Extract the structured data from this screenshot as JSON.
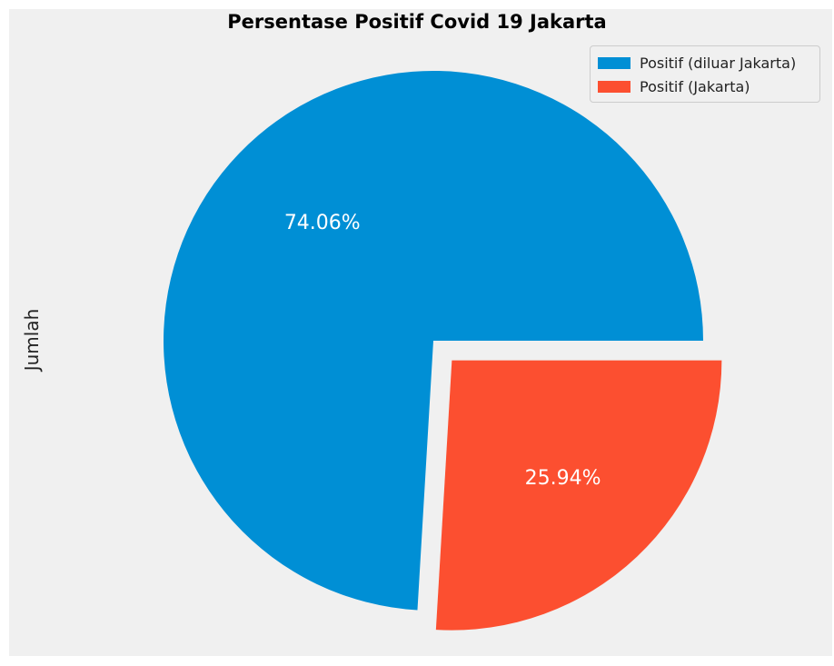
{
  "chart_data": {
    "type": "pie",
    "title": "Persentase Positif Covid 19 Jakarta",
    "ylabel": "Jumlah",
    "legend_position": "top-right",
    "slices": [
      {
        "name": "Positif (diluar Jakarta)",
        "value": 74.06,
        "label": "74.06%",
        "color": "#008fd5",
        "exploded": false
      },
      {
        "name": "Positif (Jakarta)",
        "value": 25.94,
        "label": "25.94%",
        "color": "#fc4f30",
        "exploded": true
      }
    ],
    "legend": [
      {
        "label": "Positif (diluar Jakarta)",
        "color": "#008fd5"
      },
      {
        "label": "Positif (Jakarta)",
        "color": "#fc4f30"
      }
    ]
  }
}
